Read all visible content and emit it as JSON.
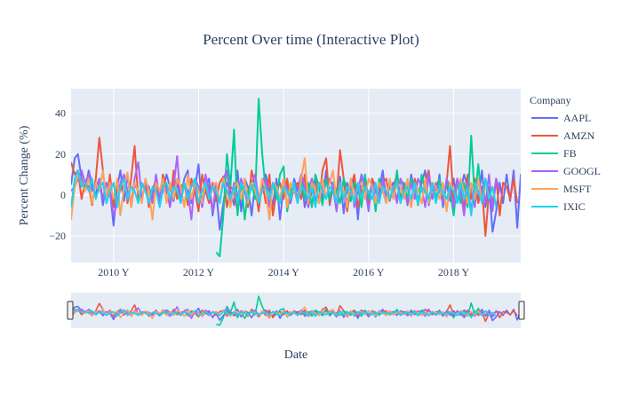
{
  "chart_data": {
    "type": "line",
    "title": "Percent Over time (Interactive Plot)",
    "xlabel": "Date",
    "ylabel": "Percent Change (%)",
    "x_range": [
      "2009-01-01",
      "2019-07-31"
    ],
    "ylim": [
      -33,
      52
    ],
    "x_ticks": [
      {
        "date": "2010-01-01",
        "label": "2010 Y"
      },
      {
        "date": "2012-01-01",
        "label": "2012 Y"
      },
      {
        "date": "2014-01-01",
        "label": "2014 Y"
      },
      {
        "date": "2016-01-01",
        "label": "2016 Y"
      },
      {
        "date": "2018-01-01",
        "label": "2018 Y"
      }
    ],
    "y_ticks": [
      {
        "value": 40,
        "label": "40"
      },
      {
        "value": 20,
        "label": "20"
      },
      {
        "value": 0,
        "label": "0"
      },
      {
        "value": -20,
        "label": "−20"
      }
    ],
    "grid": true,
    "legend": {
      "title": "Company",
      "placement": "right"
    },
    "range_slider": true,
    "series": [
      {
        "name": "AAPL",
        "color": "#636efa",
        "start": "2009-01",
        "values": [
          5,
          18,
          20,
          8,
          2,
          12,
          5,
          0,
          8,
          -5,
          6,
          2,
          -15,
          4,
          12,
          -3,
          10,
          -6,
          5,
          2,
          -2,
          6,
          4,
          -3,
          8,
          -5,
          2,
          10,
          4,
          -3,
          6,
          -2,
          8,
          12,
          -4,
          3,
          15,
          -6,
          4,
          8,
          -10,
          2,
          -17,
          -4,
          6,
          2,
          -5,
          12,
          -8,
          8,
          4,
          -10,
          6,
          -2,
          6,
          10,
          2,
          -5,
          8,
          -12,
          4,
          6,
          -4,
          8,
          2,
          10,
          -6,
          2,
          8,
          -4,
          6,
          -2,
          12,
          -5,
          4,
          -8,
          9,
          -9,
          6,
          -3,
          8,
          -12,
          10,
          4,
          -6,
          8,
          -4,
          2,
          12,
          -2,
          4,
          6,
          -3,
          8,
          4,
          -5,
          10,
          2,
          -2,
          6,
          12,
          -5,
          4,
          -2,
          10,
          -6,
          6,
          -3,
          8,
          -4,
          2,
          10,
          4,
          -8,
          6,
          -3,
          12,
          -6,
          4,
          -18,
          -8,
          6,
          -4,
          10,
          -3,
          12,
          -16,
          10,
          2
        ]
      },
      {
        "name": "AMZN",
        "color": "#ef553b",
        "start": "2009-01",
        "values": [
          16,
          10,
          12,
          -2,
          6,
          4,
          -5,
          8,
          28,
          12,
          -4,
          10,
          -6,
          6,
          2,
          10,
          -4,
          8,
          24,
          -2,
          4,
          6,
          -6,
          2,
          8,
          -3,
          10,
          4,
          -6,
          12,
          -2,
          4,
          6,
          -5,
          8,
          2,
          -8,
          10,
          2,
          -4,
          6,
          -3,
          6,
          9,
          -6,
          4,
          2,
          -8,
          6,
          2,
          -6,
          12,
          4,
          -8,
          6,
          -4,
          10,
          -10,
          2,
          6,
          -2,
          8,
          -4,
          4,
          6,
          -2,
          10,
          -6,
          2,
          8,
          -4,
          12,
          18,
          -4,
          6,
          -2,
          22,
          8,
          -8,
          4,
          10,
          -6,
          2,
          6,
          -5,
          8,
          4,
          -2,
          6,
          8,
          -3,
          4,
          10,
          -2,
          6,
          4,
          -6,
          8,
          2,
          -4,
          6,
          12,
          -2,
          4,
          8,
          -3,
          6,
          24,
          -4,
          8,
          2,
          -6,
          10,
          -2,
          8,
          -4,
          4,
          -20,
          2,
          -4,
          8,
          -10,
          6,
          4,
          -2,
          8,
          -4
        ]
      },
      {
        "name": "FB",
        "color": "#00cc96",
        "start": "2012-06",
        "values": [
          -28,
          -30,
          -10,
          20,
          4,
          32,
          -10,
          8,
          -12,
          2,
          6,
          -2,
          47,
          20,
          2,
          -4,
          6,
          -2,
          10,
          14,
          -8,
          2,
          6,
          -4,
          8,
          -2,
          6,
          -6,
          10,
          4,
          -5,
          8,
          -2,
          6,
          2,
          -4,
          8,
          2,
          -3,
          6,
          4,
          -6,
          10,
          -2,
          6,
          -8,
          8,
          2,
          -4,
          6,
          -2,
          12,
          -4,
          6,
          -2,
          8,
          4,
          -5,
          10,
          2,
          -4,
          6,
          -2,
          8,
          -4,
          6,
          2,
          -10,
          8,
          -4,
          6,
          -6,
          29,
          -2,
          15,
          -4,
          8,
          -2
        ]
      },
      {
        "name": "GOOGL",
        "color": "#ab63fa",
        "start": "2009-01",
        "values": [
          2,
          4,
          8,
          12,
          6,
          10,
          2,
          4,
          8,
          -2,
          6,
          2,
          -10,
          -4,
          6,
          10,
          2,
          -4,
          8,
          16,
          -2,
          6,
          2,
          -4,
          10,
          -2,
          6,
          2,
          -6,
          4,
          19,
          -4,
          6,
          2,
          -12,
          8,
          4,
          -6,
          10,
          2,
          -8,
          6,
          -4,
          8,
          12,
          -4,
          6,
          -2,
          8,
          2,
          -4,
          6,
          10,
          -2,
          4,
          8,
          -6,
          6,
          2,
          -4,
          8,
          2,
          -4,
          6,
          -2,
          10,
          4,
          -6,
          8,
          2,
          -4,
          6,
          -2,
          8,
          4,
          -8,
          6,
          2,
          -4,
          8,
          -6,
          2,
          10,
          4,
          -8,
          6,
          2,
          -4,
          8,
          -2,
          6,
          4,
          -4,
          8,
          2,
          -4,
          6,
          -2,
          8,
          4,
          -6,
          10,
          -2,
          6,
          2,
          -4,
          8,
          4,
          -6,
          8,
          2,
          -10,
          6,
          4,
          -6,
          8,
          2,
          -4,
          10,
          -8,
          8,
          2
        ]
      },
      {
        "name": "MSFT",
        "color": "#ffa15a",
        "start": "2009-01",
        "values": [
          -12,
          4,
          10,
          6,
          2,
          8,
          -4,
          6,
          2,
          12,
          -4,
          6,
          -2,
          8,
          -10,
          4,
          11,
          -6,
          6,
          2,
          -4,
          8,
          2,
          -12,
          6,
          2,
          8,
          -4,
          6,
          -2,
          8,
          4,
          -6,
          10,
          -2,
          6,
          2,
          -4,
          6,
          -2,
          4,
          6,
          -4,
          8,
          2,
          -6,
          4,
          6,
          -2,
          8,
          -4,
          6,
          2,
          -4,
          8,
          2,
          -12,
          6,
          4,
          -2,
          8,
          -6,
          6,
          2,
          -4,
          8,
          18,
          -4,
          6,
          2,
          -4,
          8,
          -2,
          6,
          12,
          -4,
          6,
          2,
          -6,
          8,
          -2,
          4,
          6,
          -2,
          8,
          4,
          -4,
          6,
          2,
          -4,
          8,
          -2,
          6,
          4,
          -2,
          8,
          -6,
          6,
          2,
          -4,
          8,
          -4,
          6,
          4,
          -2,
          6,
          -8,
          6,
          2,
          -4,
          8,
          2,
          -4,
          6,
          -2,
          8,
          -4,
          4
        ]
      },
      {
        "name": "IXIC",
        "color": "#19d3f3",
        "start": "2009-01",
        "values": [
          -6,
          8,
          12,
          4,
          6,
          2,
          8,
          -2,
          4,
          6,
          -4,
          2,
          6,
          -6,
          4,
          8,
          -2,
          4,
          2,
          -4,
          6,
          2,
          -4,
          4,
          2,
          -6,
          4,
          6,
          -2,
          4,
          2,
          -4,
          6,
          -2,
          4,
          8,
          -4,
          2,
          6,
          -2,
          4,
          2,
          -4,
          6,
          2,
          -2,
          4,
          -4,
          6,
          2,
          -2,
          4,
          6,
          -4,
          2,
          4,
          -2,
          6,
          2,
          -4,
          4,
          2,
          -2,
          6,
          -4,
          4,
          2,
          -2,
          4,
          -6,
          6,
          2,
          -2,
          4,
          2,
          -4,
          6,
          -2,
          4,
          2,
          -4,
          6,
          -2,
          4,
          2,
          -2,
          6,
          -4,
          4,
          2,
          -2,
          4,
          6,
          -4,
          2,
          4,
          -2,
          6,
          -4,
          4,
          2,
          -2,
          6,
          -4,
          4,
          2,
          -2,
          4,
          2,
          -4,
          6,
          -2,
          4,
          -10,
          6,
          2,
          -4,
          8,
          -2,
          4,
          -6
        ]
      }
    ]
  }
}
